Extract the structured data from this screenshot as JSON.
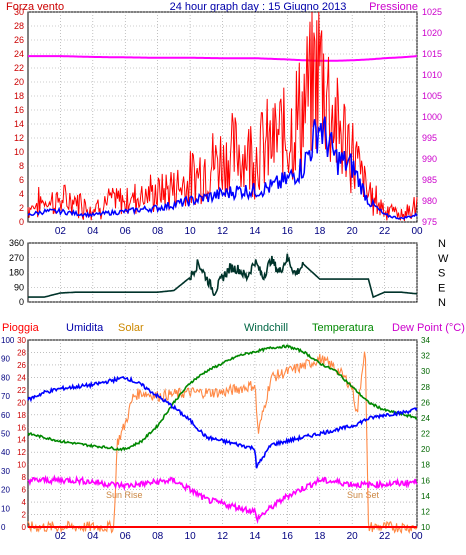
{
  "chart_data": [
    {
      "type": "line",
      "title": "24 hour graph day : 15 Giugno 2013",
      "left_axis_label": "Forza vento",
      "right_axis_label": "Pressione",
      "x_ticks": [
        "02",
        "04",
        "06",
        "08",
        "10",
        "12",
        "14",
        "16",
        "18",
        "20",
        "22",
        "00"
      ],
      "y_left_ticks": [
        "0",
        "2",
        "4",
        "6",
        "8",
        "10",
        "12",
        "14",
        "16",
        "18",
        "20",
        "22",
        "24",
        "26",
        "28",
        "30"
      ],
      "y_left_range": [
        0,
        30
      ],
      "y_right_ticks": [
        "975",
        "980",
        "985",
        "990",
        "995",
        "1000",
        "1005",
        "1010",
        "1015",
        "1020",
        "1025"
      ],
      "y_right_range": [
        975,
        1025
      ],
      "colors": {
        "gust": "#ff0000",
        "wind": "#0000ff",
        "pressure": "#ff00ff",
        "axis_left": "#cc0000",
        "axis_right": "#cc00cc",
        "title": "#0000aa"
      },
      "series": [
        {
          "key": "pressure",
          "unit": "hPa",
          "x": [
            0,
            2,
            4,
            6,
            8,
            10,
            12,
            14,
            16,
            17,
            18,
            19,
            20,
            21,
            22,
            23,
            24
          ],
          "values": [
            1014.5,
            1014.5,
            1014.3,
            1014.2,
            1014.1,
            1014.1,
            1014.0,
            1014.0,
            1013.7,
            1013.5,
            1013.4,
            1013.4,
            1013.5,
            1013.7,
            1014.0,
            1014.2,
            1014.5
          ]
        },
        {
          "key": "gust",
          "x": [
            0,
            1,
            2,
            3,
            4,
            5,
            6,
            7,
            8,
            9,
            10,
            11,
            12,
            13,
            14,
            15,
            16,
            17,
            18,
            19,
            20,
            21,
            22,
            23,
            24
          ],
          "values": [
            2,
            3,
            3,
            3,
            2,
            3,
            3,
            4,
            4,
            5,
            6,
            8,
            9,
            10,
            10,
            11,
            13,
            16,
            23,
            14,
            10,
            4,
            2,
            1,
            2
          ]
        },
        {
          "key": "wind",
          "x": [
            0,
            1,
            2,
            3,
            4,
            5,
            6,
            7,
            8,
            9,
            10,
            11,
            12,
            13,
            14,
            15,
            16,
            17,
            18,
            19,
            20,
            21,
            22,
            23,
            24
          ],
          "values": [
            1,
            1.5,
            1.5,
            1.2,
            1,
            1.3,
            1.5,
            1.8,
            2,
            2.5,
            3,
            3.5,
            4,
            4.5,
            4.5,
            5,
            6,
            8,
            14,
            9,
            8,
            3,
            1,
            0.5,
            1
          ]
        }
      ]
    },
    {
      "type": "line",
      "y_left_ticks": [
        "360",
        "270",
        "180",
        "90",
        "0"
      ],
      "y_range": [
        0,
        360
      ],
      "compass_labels": [
        "N",
        "W",
        "S",
        "E",
        "N"
      ],
      "colors": {
        "direction": "#00332a",
        "axis": "#000000"
      },
      "series": [
        {
          "key": "wind_direction",
          "unit": "degrees",
          "x": [
            0,
            1,
            2,
            3,
            4,
            5,
            6,
            7,
            8,
            9,
            10,
            10.5,
            11,
            11.5,
            12,
            12.5,
            13,
            13.5,
            14,
            14.5,
            15,
            15.5,
            16,
            16.5,
            17,
            18,
            19,
            20,
            21,
            21.3,
            22,
            23,
            24
          ],
          "values": [
            30,
            30,
            55,
            60,
            60,
            60,
            60,
            60,
            60,
            70,
            150,
            240,
            150,
            60,
            150,
            210,
            200,
            150,
            250,
            150,
            260,
            180,
            270,
            170,
            230,
            140,
            140,
            140,
            140,
            30,
            60,
            60,
            50
          ]
        }
      ]
    },
    {
      "type": "line",
      "series_labels": {
        "rain": "Pioggia",
        "humidity": "Umidita",
        "solar": "Solar",
        "windchill": "Windchill",
        "temperature": "Temperatura",
        "dewpoint": "Dew Point (°C)"
      },
      "annotations": [
        "Sun Rise",
        "Sun Set"
      ],
      "x_ticks": [
        "02",
        "04",
        "06",
        "08",
        "10",
        "12",
        "14",
        "16",
        "18",
        "20",
        "22",
        "00"
      ],
      "y_axis_rain_ticks": [
        "0",
        "10",
        "20",
        "30",
        "40",
        "50",
        "60",
        "70",
        "80",
        "90",
        "100"
      ],
      "y_axis_humidity_ticks": [
        "0",
        "2",
        "4",
        "6",
        "8",
        "10",
        "12",
        "14",
        "16",
        "18",
        "20",
        "22",
        "24",
        "26",
        "28",
        "30"
      ],
      "y_axis_temp_ticks": [
        "10",
        "12",
        "14",
        "16",
        "18",
        "20",
        "22",
        "24",
        "26",
        "28",
        "30",
        "32",
        "34"
      ],
      "colors": {
        "rain": "#ff0000",
        "humidity": "#0000ff",
        "solar": "#ff8844",
        "windchill": "#006633",
        "temperature": "#008800",
        "dewpoint": "#ff00ff"
      },
      "series": [
        {
          "key": "humidity",
          "unit": "%",
          "x": [
            0,
            1,
            2,
            3,
            4,
            5,
            5.5,
            6,
            7,
            8,
            9,
            10,
            11,
            12,
            13,
            14,
            14.1,
            15,
            16,
            17,
            18,
            19,
            20,
            21,
            22,
            23,
            24
          ],
          "values": [
            68,
            72,
            74,
            75,
            76,
            78,
            79,
            80,
            76,
            70,
            64,
            57,
            48,
            46,
            44,
            42,
            32,
            44,
            46,
            48,
            50,
            52,
            54,
            58,
            60,
            61,
            63
          ]
        },
        {
          "key": "solar",
          "x": [
            0,
            5.3,
            5.5,
            6,
            6.5,
            7,
            8,
            10,
            12,
            14,
            14.2,
            15,
            16,
            17,
            18,
            19,
            20,
            20.3,
            20.8,
            21,
            24
          ],
          "values": [
            0,
            0,
            45,
            55,
            70,
            72,
            70,
            72,
            72,
            76,
            50,
            80,
            83,
            86,
            90,
            85,
            75,
            60,
            98,
            0,
            0
          ]
        },
        {
          "key": "temperature",
          "unit": "°C",
          "x": [
            0,
            1,
            2,
            3,
            4,
            5,
            5.5,
            6,
            7,
            8,
            9,
            10,
            11,
            12,
            13,
            14,
            15,
            16,
            17,
            18,
            19,
            20,
            21,
            22,
            23,
            24
          ],
          "values": [
            22,
            21.5,
            21,
            20.7,
            20.4,
            20.2,
            20,
            20,
            21,
            23,
            26,
            28.5,
            30,
            31,
            32,
            32.5,
            33,
            33.2,
            32.5,
            31,
            30,
            28,
            26,
            25,
            24.5,
            24
          ]
        },
        {
          "key": "dewpoint",
          "unit": "°C",
          "x": [
            0,
            1,
            2,
            3,
            4,
            5,
            6,
            7,
            8,
            9,
            10,
            11,
            12,
            13,
            14,
            14.1,
            15,
            16,
            17,
            18,
            19,
            20,
            21,
            22,
            23,
            24
          ],
          "values": [
            16,
            16,
            16,
            16,
            15.8,
            15.5,
            15.3,
            15.5,
            15.8,
            16,
            14.8,
            13.5,
            13,
            12.5,
            12,
            11,
            12.5,
            14,
            15,
            16,
            15.8,
            15.5,
            15.4,
            15.5,
            15.6,
            15.8
          ]
        },
        {
          "key": "rain",
          "unit": "mm",
          "x": [
            0,
            24
          ],
          "values": [
            0,
            0
          ]
        }
      ]
    }
  ]
}
